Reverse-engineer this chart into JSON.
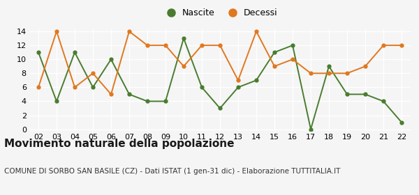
{
  "years": [
    "02",
    "03",
    "04",
    "05",
    "06",
    "07",
    "08",
    "09",
    "10",
    "11",
    "12",
    "13",
    "14",
    "15",
    "16",
    "17",
    "18",
    "19",
    "20",
    "21",
    "22"
  ],
  "nascite": [
    11,
    4,
    11,
    6,
    10,
    5,
    4,
    4,
    13,
    6,
    3,
    6,
    7,
    11,
    12,
    0,
    9,
    5,
    5,
    4,
    1
  ],
  "decessi": [
    6,
    14,
    6,
    8,
    5,
    14,
    12,
    12,
    9,
    12,
    12,
    7,
    14,
    9,
    10,
    8,
    8,
    8,
    9,
    12,
    12
  ],
  "nascite_color": "#4a7c2f",
  "decessi_color": "#e07820",
  "title": "Movimento naturale della popolazione",
  "subtitle": "COMUNE DI SORBO SAN BASILE (CZ) - Dati ISTAT (1 gen-31 dic) - Elaborazione TUTTITALIA.IT",
  "ylim": [
    0,
    14
  ],
  "yticks": [
    0,
    2,
    4,
    6,
    8,
    10,
    12,
    14
  ],
  "background_color": "#f5f5f5",
  "legend_nascite": "Nascite",
  "legend_decessi": "Decessi",
  "title_fontsize": 11,
  "subtitle_fontsize": 7.5,
  "tick_fontsize": 8
}
